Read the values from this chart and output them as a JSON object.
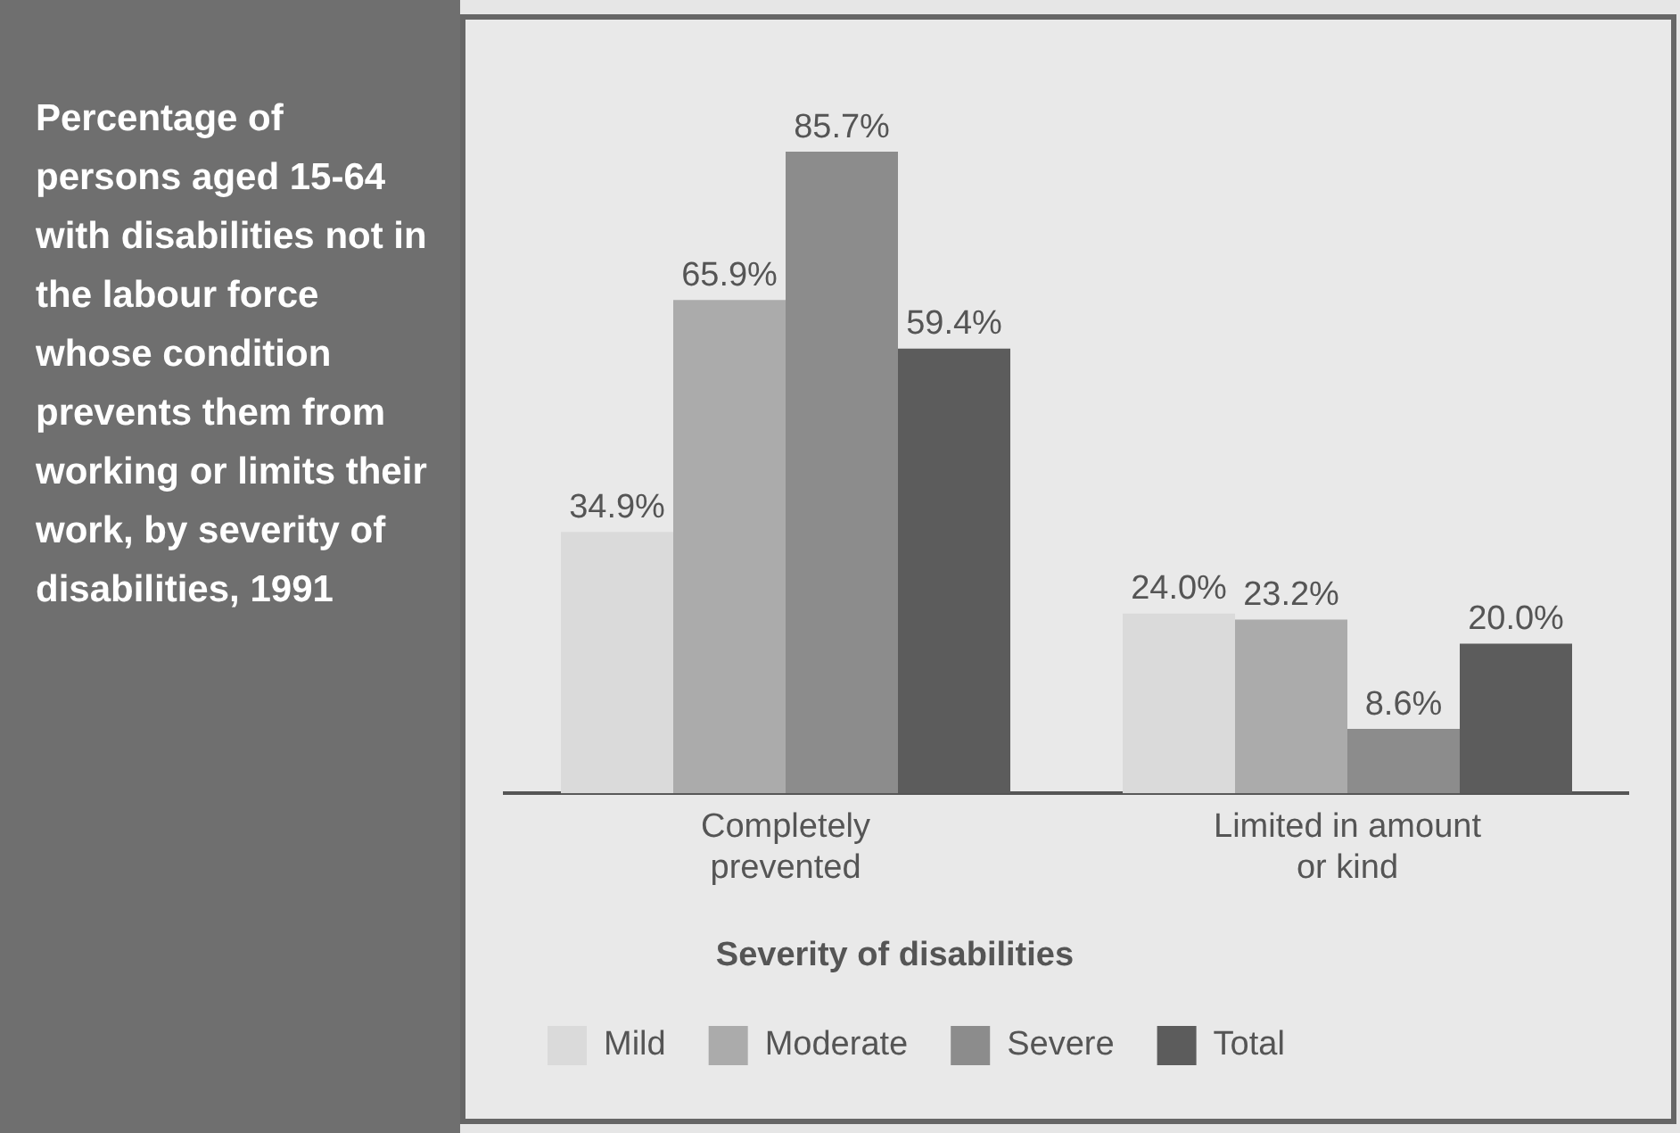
{
  "chart_data": {
    "type": "bar",
    "title": "Percentage of persons aged 15-64 with disabilities not in the labour force whose condition prevents them from working or limits their work, by severity of disabilities, 1991",
    "categories": [
      "Completely prevented",
      "Limited in amount or kind"
    ],
    "legend_title": "Severity of disabilities",
    "legend": "bottom",
    "tick_labels": "x",
    "grid": false,
    "series": [
      {
        "name": "Mild",
        "color": "#dadada",
        "values": [
          34.9,
          24.0
        ],
        "value_labels": [
          "34.9%",
          "24.0%"
        ]
      },
      {
        "name": "Moderate",
        "color": "#ababab",
        "values": [
          65.9,
          23.2
        ],
        "value_labels": [
          "65.9%",
          "23.2%"
        ]
      },
      {
        "name": "Severe",
        "color": "#8c8c8c",
        "values": [
          85.7,
          8.6
        ],
        "value_labels": [
          "85.7%",
          "8.6%"
        ]
      },
      {
        "name": "Total",
        "color": "#5c5c5c",
        "values": [
          59.4,
          20.0
        ],
        "value_labels": [
          "59.4%",
          "20.0%"
        ]
      }
    ]
  }
}
